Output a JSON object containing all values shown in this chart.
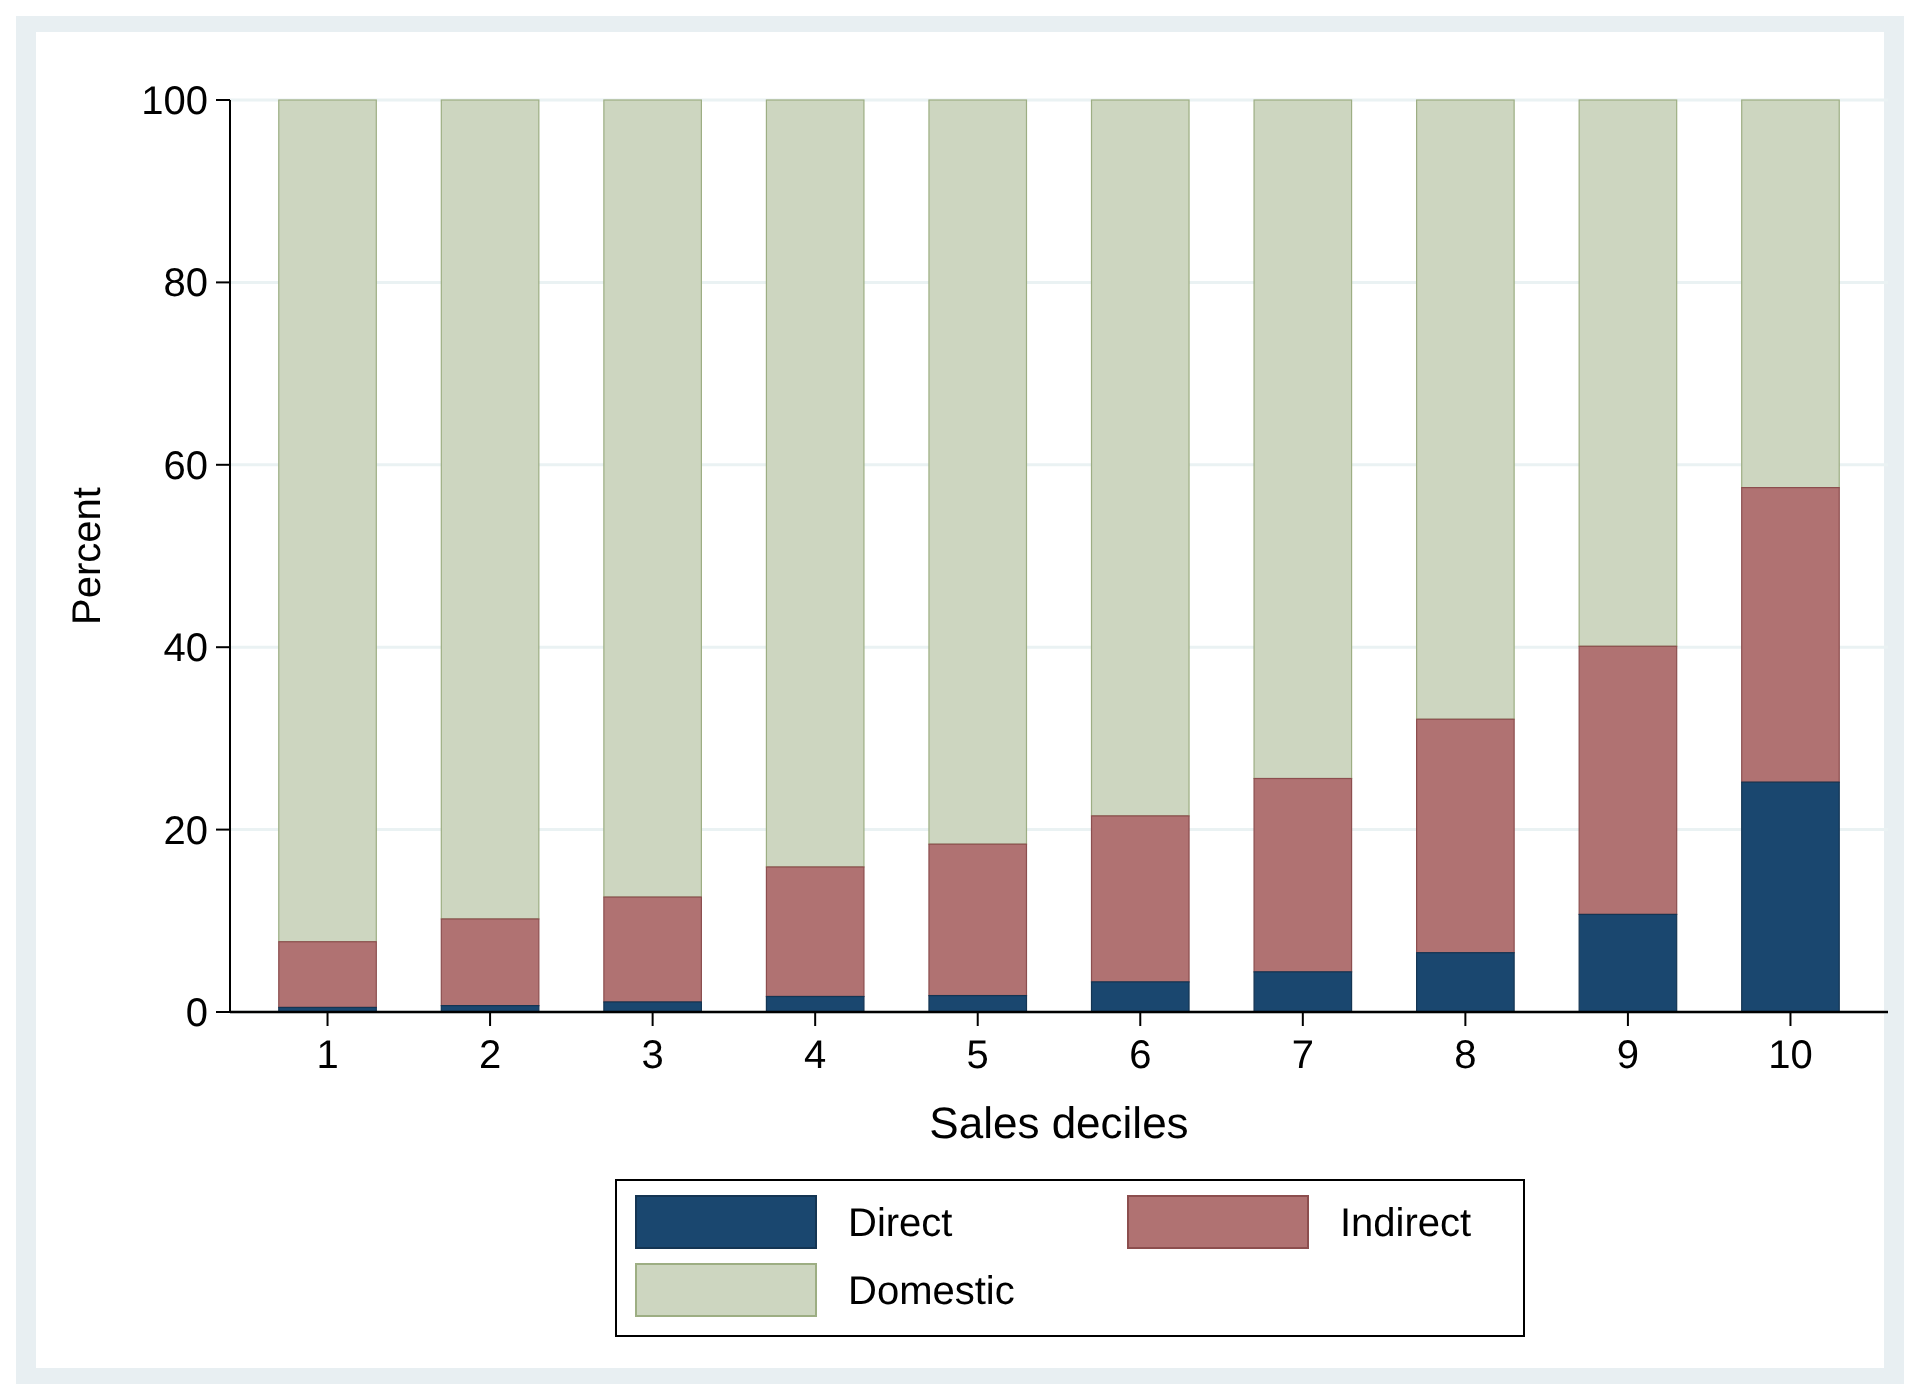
{
  "chart_data": {
    "type": "bar",
    "stacked": true,
    "xlabel": "Sales deciles",
    "ylabel": "Percent",
    "categories": [
      "1",
      "2",
      "3",
      "4",
      "5",
      "6",
      "7",
      "8",
      "9",
      "10"
    ],
    "series": [
      {
        "name": "Direct",
        "color": "#1a476f",
        "values": [
          0.5,
          0.7,
          1.1,
          1.7,
          1.8,
          3.3,
          4.4,
          6.5,
          10.7,
          25.2
        ]
      },
      {
        "name": "Indirect",
        "color": "#b07272",
        "values": [
          7.2,
          9.5,
          11.5,
          14.2,
          16.6,
          18.2,
          21.2,
          25.6,
          29.4,
          32.3
        ]
      },
      {
        "name": "Domestic",
        "color": "#cdd6c0",
        "values": [
          92.3,
          89.8,
          87.4,
          84.1,
          81.6,
          78.5,
          74.4,
          67.9,
          59.9,
          42.5
        ]
      }
    ],
    "ylim": [
      0,
      100
    ],
    "yticks": [
      0,
      20,
      40,
      60,
      80,
      100
    ],
    "grid": "y",
    "legend": "bottom"
  }
}
